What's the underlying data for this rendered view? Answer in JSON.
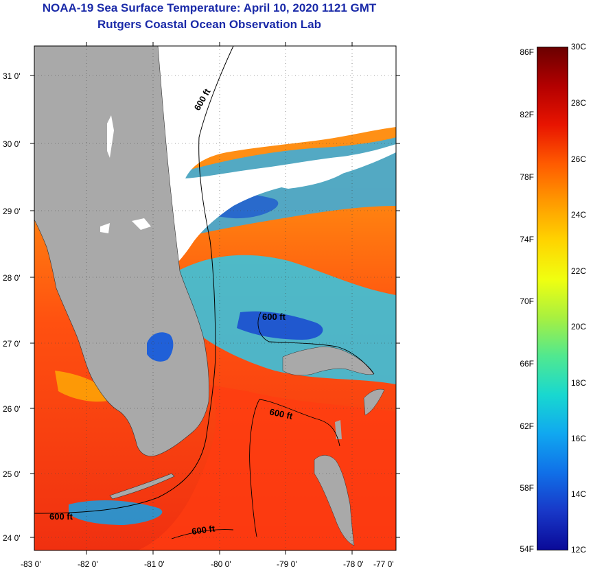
{
  "title": "NOAA-19 Sea Surface Temperature:  April 10, 2020 1121 GMT",
  "subtitle": "Rutgers Coastal Ocean Observation Lab",
  "longitude_ticks": [
    "-83 0'",
    "-82 0'",
    "-81 0'",
    "-80 0'",
    "-79 0'",
    "-78 0'",
    "-77 0'"
  ],
  "latitude_ticks": [
    "31 0'",
    "30 0'",
    "29 0'",
    "28 0'",
    "27 0'",
    "26 0'",
    "25 0'",
    "24 0'"
  ],
  "contour_labels": [
    "600 ft",
    "600 ft",
    "600 ft",
    "600 ft",
    "600 ft"
  ],
  "colorbar": {
    "fahrenheit_labels": [
      "86F",
      "82F",
      "78F",
      "74F",
      "70F",
      "66F",
      "62F",
      "58F",
      "54F"
    ],
    "celsius_labels": [
      "30C",
      "28C",
      "26C",
      "24C",
      "22C",
      "20C",
      "18C",
      "16C",
      "14C",
      "12C"
    ],
    "colors": [
      "#6b0000",
      "#b30000",
      "#e81400",
      "#ff5a00",
      "#ff9a00",
      "#ffd400",
      "#f0ff10",
      "#a8f040",
      "#50e890",
      "#18d8d0",
      "#10a8f0",
      "#1070e8",
      "#1838c8",
      "#0a0a98"
    ]
  },
  "colors": {
    "land": "#a9a9a9",
    "title": "#1a2aa8",
    "cloud": "#ffffff"
  }
}
